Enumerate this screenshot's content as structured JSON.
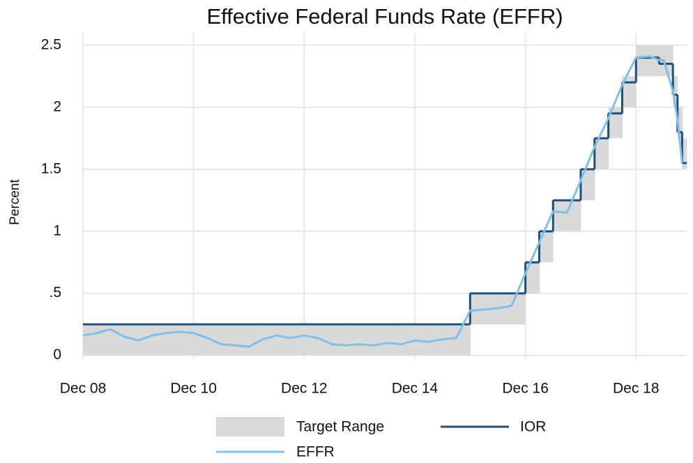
{
  "chart_data": {
    "type": "line",
    "title": "Effective Federal Funds Rate (EFFR)",
    "y_label": "Percent",
    "x": [
      "2008-12",
      "2009-03",
      "2009-06",
      "2009-09",
      "2009-12",
      "2010-03",
      "2010-06",
      "2010-09",
      "2010-12",
      "2011-03",
      "2011-06",
      "2011-09",
      "2011-12",
      "2012-03",
      "2012-06",
      "2012-09",
      "2012-12",
      "2013-03",
      "2013-06",
      "2013-09",
      "2013-12",
      "2014-03",
      "2014-06",
      "2014-09",
      "2014-12",
      "2015-03",
      "2015-06",
      "2015-09",
      "2015-12",
      "2016-03",
      "2016-06",
      "2016-09",
      "2016-12",
      "2017-03",
      "2017-06",
      "2017-09",
      "2017-12",
      "2018-03",
      "2018-06",
      "2018-09",
      "2018-12",
      "2019-03",
      "2019-05",
      "2019-06",
      "2019-08",
      "2019-09",
      "2019-10"
    ],
    "series": [
      {
        "name": "Target Range",
        "color": "#d9d9d9",
        "lower": [
          0,
          0,
          0,
          0,
          0,
          0,
          0,
          0,
          0,
          0,
          0,
          0,
          0,
          0,
          0,
          0,
          0,
          0,
          0,
          0,
          0,
          0,
          0,
          0,
          0,
          0,
          0,
          0,
          0.25,
          0.25,
          0.25,
          0.25,
          0.5,
          0.75,
          1,
          1,
          1.25,
          1.5,
          1.75,
          2,
          2.25,
          2.25,
          2.25,
          2.25,
          2,
          1.75,
          1.5
        ],
        "upper": [
          0.25,
          0.25,
          0.25,
          0.25,
          0.25,
          0.25,
          0.25,
          0.25,
          0.25,
          0.25,
          0.25,
          0.25,
          0.25,
          0.25,
          0.25,
          0.25,
          0.25,
          0.25,
          0.25,
          0.25,
          0.25,
          0.25,
          0.25,
          0.25,
          0.25,
          0.25,
          0.25,
          0.25,
          0.5,
          0.5,
          0.5,
          0.5,
          0.75,
          1,
          1.25,
          1.25,
          1.5,
          1.75,
          2,
          2.25,
          2.5,
          2.5,
          2.5,
          2.5,
          2.25,
          2,
          1.75
        ]
      },
      {
        "name": "IOR",
        "color": "#1f4e79",
        "values": [
          0.25,
          0.25,
          0.25,
          0.25,
          0.25,
          0.25,
          0.25,
          0.25,
          0.25,
          0.25,
          0.25,
          0.25,
          0.25,
          0.25,
          0.25,
          0.25,
          0.25,
          0.25,
          0.25,
          0.25,
          0.25,
          0.25,
          0.25,
          0.25,
          0.25,
          0.25,
          0.25,
          0.25,
          0.5,
          0.5,
          0.5,
          0.5,
          0.75,
          1,
          1.25,
          1.25,
          1.5,
          1.75,
          1.95,
          2.2,
          2.4,
          2.4,
          2.35,
          2.35,
          2.1,
          1.8,
          1.55
        ]
      },
      {
        "name": "EFFR",
        "color": "#7cc0ea",
        "values": [
          0.16,
          0.18,
          0.21,
          0.15,
          0.12,
          0.16,
          0.18,
          0.19,
          0.18,
          0.14,
          0.09,
          0.08,
          0.07,
          0.13,
          0.16,
          0.14,
          0.16,
          0.14,
          0.09,
          0.08,
          0.09,
          0.08,
          0.1,
          0.09,
          0.12,
          0.11,
          0.13,
          0.14,
          0.36,
          0.37,
          0.38,
          0.4,
          0.66,
          0.91,
          1.16,
          1.15,
          1.41,
          1.68,
          1.91,
          2.18,
          2.4,
          2.41,
          2.38,
          2.38,
          2.13,
          1.9,
          1.55
        ]
      }
    ],
    "xlim": [
      "2008-12",
      "2019-11"
    ],
    "xticks": [
      {
        "value": "2008-12",
        "label": "Dec 08"
      },
      {
        "value": "2010-12",
        "label": "Dec 10"
      },
      {
        "value": "2012-12",
        "label": "Dec 12"
      },
      {
        "value": "2014-12",
        "label": "Dec 14"
      },
      {
        "value": "2016-12",
        "label": "Dec 16"
      },
      {
        "value": "2018-12",
        "label": "Dec 18"
      }
    ],
    "ylim": [
      -0.03,
      2.6
    ],
    "yticks": [
      0,
      {
        "value": 0.5,
        "label": ".5"
      },
      1,
      1.5,
      2,
      2.5
    ],
    "grid": true,
    "legend": "bottom"
  }
}
